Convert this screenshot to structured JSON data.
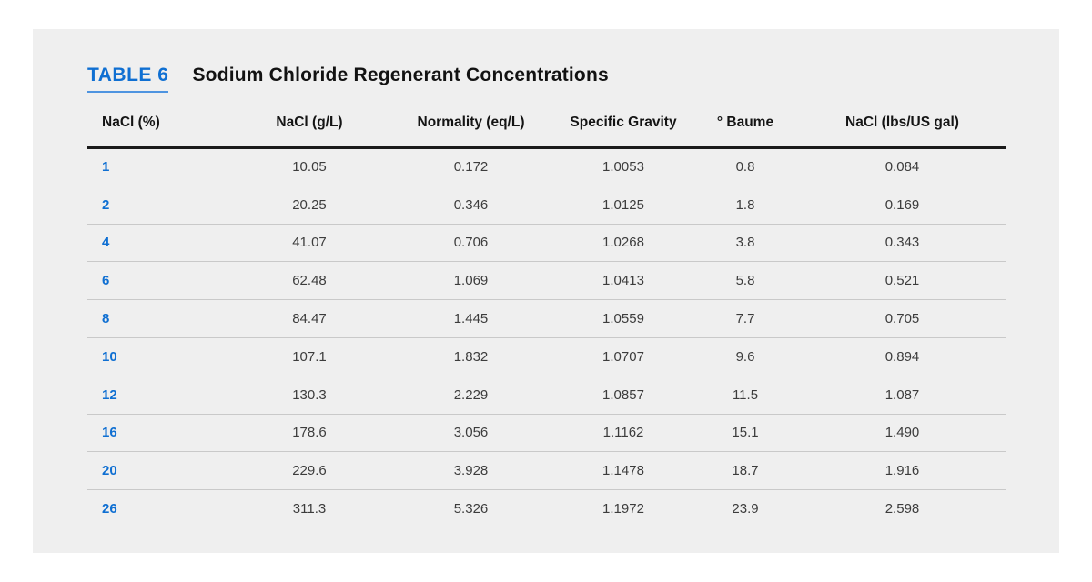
{
  "title": {
    "label": "TABLE 6",
    "text": "Sodium Chloride Regenerant Concentrations"
  },
  "colors": {
    "accent_blue": "#0f6fd2",
    "label_underline": "#4e94e0",
    "card_background": "#efefef",
    "header_rule": "#1a1a1a",
    "row_divider": "#c9c9c9",
    "body_text": "#3c3c3c"
  },
  "table": {
    "headers": [
      "NaCl (%)",
      "NaCl (g/L)",
      "Normality (eq/L)",
      "Specific Gravity",
      "° Baume",
      "NaCl (lbs/US gal)"
    ],
    "rows": [
      [
        "1",
        "10.05",
        "0.172",
        "1.0053",
        "0.8",
        "0.084"
      ],
      [
        "2",
        "20.25",
        "0.346",
        "1.0125",
        "1.8",
        "0.169"
      ],
      [
        "4",
        "41.07",
        "0.706",
        "1.0268",
        "3.8",
        "0.343"
      ],
      [
        "6",
        "62.48",
        "1.069",
        "1.0413",
        "5.8",
        "0.521"
      ],
      [
        "8",
        "84.47",
        "1.445",
        "1.0559",
        "7.7",
        "0.705"
      ],
      [
        "10",
        "107.1",
        "1.832",
        "1.0707",
        "9.6",
        "0.894"
      ],
      [
        "12",
        "130.3",
        "2.229",
        "1.0857",
        "11.5",
        "1.087"
      ],
      [
        "16",
        "178.6",
        "3.056",
        "1.1162",
        "15.1",
        "1.490"
      ],
      [
        "20",
        "229.6",
        "3.928",
        "1.1478",
        "18.7",
        "1.916"
      ],
      [
        "26",
        "311.3",
        "5.326",
        "1.1972",
        "23.9",
        "2.598"
      ]
    ]
  }
}
